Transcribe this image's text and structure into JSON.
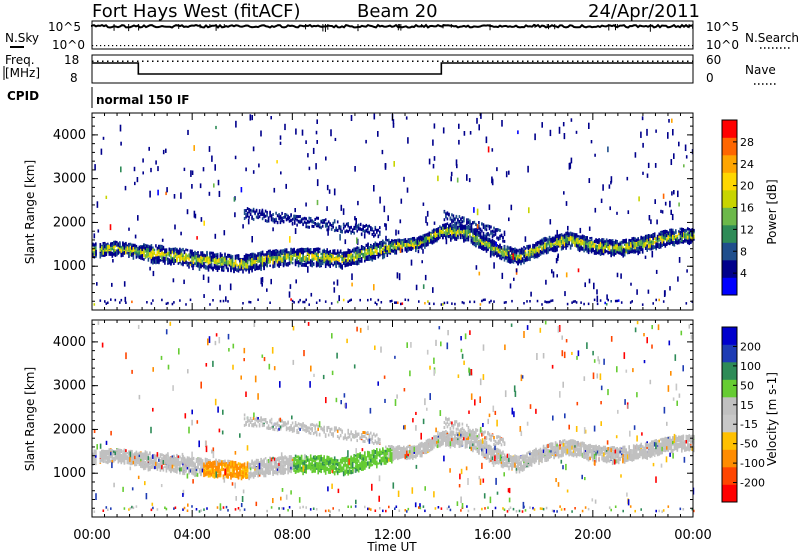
{
  "header": {
    "radar": "Fort Hays West (fitACF)",
    "beam": "Beam 20",
    "date": "24/Apr/2011"
  },
  "top_panels": {
    "nsky_label": "N.Sky",
    "nsky_ticks": [
      "10^5",
      "10^0"
    ],
    "nsearch_label": "N.Search",
    "nsearch_ticks": [
      "10^5",
      "10^0"
    ],
    "freq_label_1": "Freq.",
    "freq_label_2": "[MHz]",
    "freq_ticks": [
      "18",
      "8"
    ],
    "nave_label": "Nave",
    "nave_ticks": [
      "60",
      "0"
    ],
    "cpid_label": "CPID",
    "cpid_value": "normal 150 IF"
  },
  "colors": {
    "power": [
      "#0000ff",
      "#00008b",
      "#1f4e8c",
      "#2e8b57",
      "#6cb84a",
      "#c8d400",
      "#ffd700",
      "#ffa500",
      "#ff6600",
      "#ff0000"
    ],
    "velocity": [
      "#0000cd",
      "#1e3cb4",
      "#2e8b57",
      "#66cc33",
      "#c0c0c0",
      "#c8c8c8",
      "#ffc000",
      "#ff8c00",
      "#ff4500",
      "#ff0000"
    ]
  },
  "chart_data": [
    {
      "type": "heatmap",
      "panel": "power",
      "ylabel": "Slant Range [km]",
      "xlabel": "",
      "xlim": [
        "00:00",
        "24:00"
      ],
      "ylim": [
        0,
        4500
      ],
      "y_ticks": [
        1000,
        2000,
        3000,
        4000
      ],
      "x_tick_labels": [
        "00:00",
        "04:00",
        "08:00",
        "12:00",
        "16:00",
        "20:00",
        "00:00"
      ],
      "colorbar_label": "Power [dB]",
      "colorbar_ticks": [
        "28",
        "24",
        "20",
        "16",
        "12",
        "8",
        "4"
      ],
      "colorbar_range": [
        0,
        30
      ],
      "echo_band_center_km": [
        [
          0,
          1400
        ],
        [
          1,
          1450
        ],
        [
          2,
          1350
        ],
        [
          3,
          1300
        ],
        [
          4,
          1200
        ],
        [
          5,
          1150
        ],
        [
          6,
          1100
        ],
        [
          7,
          1200
        ],
        [
          8,
          1250
        ],
        [
          9,
          1250
        ],
        [
          10,
          1200
        ],
        [
          11,
          1350
        ],
        [
          12,
          1500
        ],
        [
          13,
          1550
        ],
        [
          14,
          1850
        ],
        [
          15,
          1800
        ],
        [
          16,
          1450
        ],
        [
          17,
          1250
        ],
        [
          18,
          1500
        ],
        [
          19,
          1650
        ],
        [
          20,
          1500
        ],
        [
          21,
          1450
        ],
        [
          22,
          1550
        ],
        [
          23,
          1700
        ],
        [
          24,
          1750
        ]
      ]
    },
    {
      "type": "heatmap",
      "panel": "velocity",
      "ylabel": "Slant Range [km]",
      "xlabel": "Time UT",
      "xlim": [
        "00:00",
        "24:00"
      ],
      "ylim": [
        0,
        4500
      ],
      "y_ticks": [
        1000,
        2000,
        3000,
        4000
      ],
      "x_tick_labels": [
        "00:00",
        "04:00",
        "08:00",
        "12:00",
        "16:00",
        "20:00",
        "00:00"
      ],
      "colorbar_label": "Velocity [m s-1]",
      "colorbar_ticks": [
        "200",
        "100",
        "50",
        "15",
        "-15",
        "-50",
        "-100",
        "-200"
      ],
      "colorbar_range": [
        -250,
        250
      ]
    }
  ]
}
